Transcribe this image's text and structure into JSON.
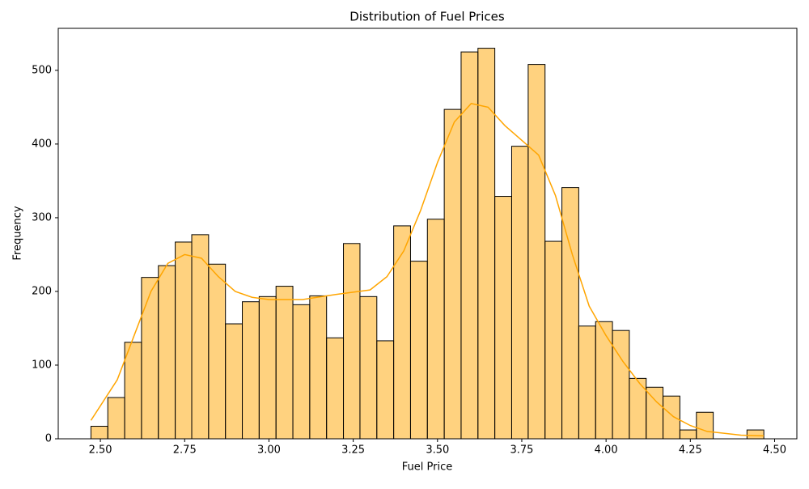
{
  "chart_data": {
    "type": "histogram",
    "title": "Distribution of Fuel Prices",
    "x_label": "Fuel Price",
    "y_label": "Frequency",
    "bins": [
      2.472,
      2.522,
      2.572,
      2.622,
      2.672,
      2.722,
      2.771,
      2.821,
      2.871,
      2.921,
      2.971,
      3.021,
      3.071,
      3.121,
      3.171,
      3.221,
      3.27,
      3.32,
      3.37,
      3.42,
      3.47,
      3.52,
      3.57,
      3.62,
      3.67,
      3.72,
      3.769,
      3.819,
      3.869,
      3.919,
      3.969,
      4.019,
      4.069,
      4.119,
      4.169,
      4.219,
      4.268,
      4.318,
      4.368,
      4.418,
      4.468
    ],
    "values": [
      17,
      56,
      131,
      219,
      235,
      267,
      277,
      237,
      156,
      186,
      193,
      207,
      182,
      194,
      137,
      265,
      193,
      133,
      289,
      241,
      298,
      447,
      525,
      530,
      329,
      397,
      508,
      268,
      341,
      153,
      159,
      147,
      82,
      70,
      58,
      12,
      36,
      0,
      0,
      12
    ],
    "color": "#ffa500",
    "kde": {
      "color": "#ffa500",
      "x": [
        2.472,
        2.55,
        2.6,
        2.65,
        2.7,
        2.75,
        2.8,
        2.85,
        2.9,
        2.95,
        3.0,
        3.1,
        3.2,
        3.25,
        3.3,
        3.35,
        3.4,
        3.45,
        3.5,
        3.55,
        3.6,
        3.65,
        3.7,
        3.75,
        3.8,
        3.85,
        3.9,
        3.95,
        4.0,
        4.05,
        4.1,
        4.15,
        4.2,
        4.25,
        4.3,
        4.4,
        4.468
      ],
      "values": [
        25,
        80,
        140,
        200,
        238,
        250,
        245,
        220,
        200,
        192,
        189,
        189,
        196,
        199,
        202,
        220,
        255,
        310,
        375,
        430,
        455,
        450,
        425,
        405,
        385,
        330,
        250,
        180,
        140,
        105,
        75,
        50,
        30,
        18,
        10,
        5,
        4
      ]
    },
    "xlim": [
      2.375,
      4.566
    ],
    "ylim": [
      0,
      557
    ],
    "xticks": [
      {
        "value": 2.5,
        "label": "2.50"
      },
      {
        "value": 2.75,
        "label": "2.75"
      },
      {
        "value": 3.0,
        "label": "3.00"
      },
      {
        "value": 3.25,
        "label": "3.25"
      },
      {
        "value": 3.5,
        "label": "3.50"
      },
      {
        "value": 3.75,
        "label": "3.75"
      },
      {
        "value": 4.0,
        "label": "4.00"
      },
      {
        "value": 4.25,
        "label": "4.25"
      },
      {
        "value": 4.5,
        "label": "4.50"
      }
    ],
    "yticks": [
      0,
      100,
      200,
      300,
      400,
      500
    ],
    "grid": false
  }
}
